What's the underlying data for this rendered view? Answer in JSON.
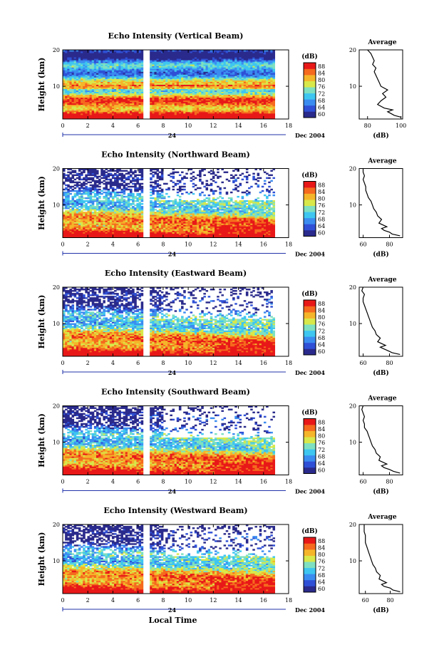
{
  "chart_data": {
    "type": "heatmap",
    "xlabel": "Local Time",
    "date_day": "24",
    "date_label": "Dec 2004",
    "colorbar": {
      "unit": "(dB)",
      "ticks": [
        60,
        64,
        68,
        72,
        76,
        80,
        84,
        88
      ],
      "range": [
        58,
        90
      ],
      "colors": [
        "#2a2a8c",
        "#2f50d6",
        "#3b8cf0",
        "#3ec6f0",
        "#7ee0c0",
        "#d8e84a",
        "#f5b52a",
        "#f56a1e",
        "#e81818"
      ]
    },
    "x_ticks": [
      0,
      2,
      4,
      6,
      8,
      10,
      12,
      14,
      16,
      18
    ],
    "x_range": [
      0,
      18
    ],
    "y_range": [
      1,
      20
    ],
    "y_ticks": [
      10,
      20
    ],
    "data_gap": [
      6.3,
      6.9
    ],
    "data_end": 16.9,
    "panels": [
      {
        "title": "Echo Intensity (Vertical Beam)",
        "average_title": "Average",
        "average_xlabel": "(dB)",
        "average_xticks": [
          80,
          100
        ],
        "average_xrange": [
          75,
          101
        ],
        "average_profile": {
          "height": [
            1.5,
            2,
            2.5,
            3,
            3.5,
            4,
            5,
            6,
            7,
            8,
            9,
            10,
            11,
            12,
            13,
            14,
            15,
            16,
            17,
            18,
            19,
            20
          ],
          "value": [
            100,
            96,
            94,
            92,
            95,
            90,
            86,
            88,
            91,
            89,
            92,
            88,
            87,
            86,
            85,
            84,
            85,
            83,
            84,
            83,
            82,
            80
          ]
        }
      },
      {
        "title": "Echo Intensity (Northward Beam)",
        "average_title": "Average",
        "average_xlabel": "(dB)",
        "average_xticks": [
          60,
          80
        ],
        "average_xrange": [
          57,
          90
        ],
        "average_profile": {
          "height": [
            1.5,
            2,
            2.5,
            3,
            3.5,
            4,
            5,
            6,
            7,
            8,
            9,
            10,
            11,
            12,
            13,
            14,
            15,
            16,
            17,
            18,
            19,
            20
          ],
          "value": [
            88,
            82,
            80,
            76,
            74,
            78,
            72,
            74,
            71,
            70,
            68,
            67,
            66,
            64,
            63,
            62,
            62,
            61,
            60,
            61,
            60,
            60
          ]
        }
      },
      {
        "title": "Echo Intensity (Eastward Beam)",
        "average_title": "Average",
        "average_xlabel": "(dB)",
        "average_xticks": [
          60,
          80
        ],
        "average_xrange": [
          57,
          90
        ],
        "average_profile": {
          "height": [
            1.5,
            2,
            2.5,
            3,
            3.5,
            4,
            5,
            6,
            7,
            8,
            9,
            10,
            11,
            12,
            13,
            14,
            15,
            16,
            17,
            18,
            19,
            20
          ],
          "value": [
            88,
            82,
            79,
            76,
            73,
            77,
            71,
            73,
            70,
            69,
            67,
            66,
            65,
            64,
            63,
            62,
            61,
            60,
            60,
            61,
            59,
            60
          ]
        }
      },
      {
        "title": "Echo Intensity (Southward Beam)",
        "average_title": "Average",
        "average_xlabel": "(dB)",
        "average_xticks": [
          60,
          80
        ],
        "average_xrange": [
          57,
          90
        ],
        "average_profile": {
          "height": [
            1.5,
            2,
            2.5,
            3,
            3.5,
            4,
            5,
            6,
            7,
            8,
            9,
            10,
            11,
            12,
            13,
            14,
            15,
            16,
            17,
            18,
            19,
            20
          ],
          "value": [
            88,
            83,
            80,
            76,
            74,
            78,
            72,
            73,
            70,
            69,
            67,
            66,
            65,
            64,
            63,
            61,
            61,
            60,
            61,
            60,
            59,
            60
          ]
        }
      },
      {
        "title": "Echo Intensity (Westward Beam)",
        "average_title": "Average",
        "average_xlabel": "(dB)",
        "average_xticks": [
          60,
          80
        ],
        "average_xrange": [
          55,
          90
        ],
        "average_profile": {
          "height": [
            1.5,
            2,
            2.5,
            3,
            3.5,
            4,
            5,
            6,
            7,
            8,
            9,
            10,
            11,
            12,
            13,
            14,
            15,
            16,
            17,
            18,
            19,
            20
          ],
          "value": [
            88,
            82,
            80,
            75,
            73,
            77,
            71,
            72,
            69,
            68,
            66,
            65,
            64,
            63,
            62,
            61,
            60,
            60,
            60,
            59,
            59,
            59
          ]
        }
      }
    ],
    "ylabel": "Height (km)"
  }
}
